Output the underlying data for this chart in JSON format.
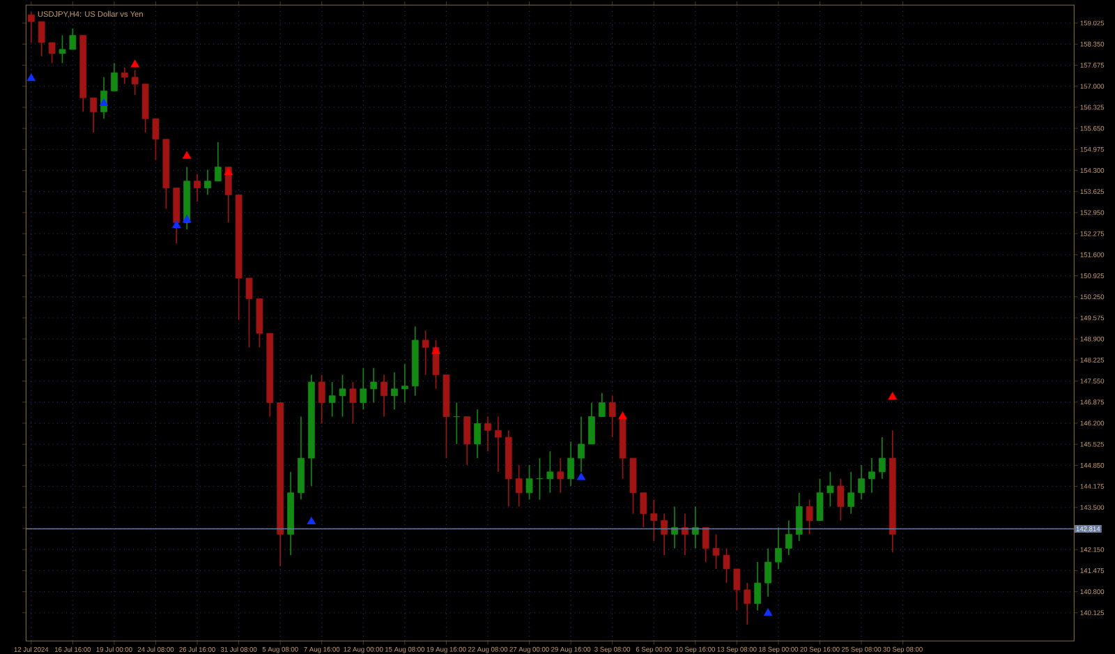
{
  "chart_data": {
    "type": "candlestick",
    "title": "USDJPY,H4: US Dollar vs Yen",
    "categories": [
      "12 Jul 2024",
      null,
      null,
      null,
      "16 Jul 16:00",
      null,
      null,
      null,
      "19 Jul 00:00",
      null,
      null,
      null,
      "24 Jul 08:00",
      null,
      null,
      null,
      "26 Jul 16:00",
      null,
      null,
      null,
      "31 Jul 08:00",
      null,
      null,
      null,
      "5 Aug 08:00",
      null,
      null,
      null,
      "7 Aug 16:00",
      null,
      null,
      null,
      "12 Aug 00:00",
      null,
      null,
      null,
      "15 Aug 08:00",
      null,
      null,
      null,
      "19 Aug 16:00",
      null,
      null,
      null,
      "22 Aug 08:00",
      null,
      null,
      null,
      "27 Aug 00:00",
      null,
      null,
      null,
      "29 Aug 16:00",
      null,
      null,
      null,
      "3 Sep 08:00",
      null,
      null,
      null,
      "6 Sep 00:00",
      null,
      null,
      null,
      "10 Sep 16:00",
      null,
      null,
      null,
      "13 Sep 08:00",
      null,
      null,
      null,
      "18 Sep 00:00",
      null,
      null,
      null,
      "20 Sep 16:00",
      null,
      null,
      null,
      "25 Sep 08:00",
      null,
      null,
      null,
      "30 Sep 08:00",
      null,
      null,
      null,
      null,
      null,
      null,
      null,
      null,
      null,
      null,
      null,
      null,
      null,
      null,
      null,
      null
    ],
    "ohlc": [
      [
        159.29,
        159.38,
        158.4,
        159.07
      ],
      [
        159.07,
        159.07,
        157.96,
        158.4
      ],
      [
        158.4,
        158.4,
        157.74,
        158.05
      ],
      [
        158.05,
        158.63,
        157.74,
        158.18
      ],
      [
        158.18,
        158.85,
        158.18,
        158.63
      ],
      [
        158.63,
        158.63,
        156.18,
        156.63
      ],
      [
        156.63,
        156.63,
        155.52,
        156.18
      ],
      [
        156.18,
        157.29,
        155.96,
        156.85
      ],
      [
        156.85,
        157.74,
        156.85,
        157.43
      ],
      [
        157.43,
        157.6,
        157.07,
        157.29
      ],
      [
        157.29,
        157.52,
        156.72,
        157.07
      ],
      [
        157.07,
        157.07,
        155.52,
        155.96
      ],
      [
        155.96,
        155.96,
        154.63,
        155.3
      ],
      [
        155.3,
        155.3,
        153.07,
        153.74
      ],
      [
        153.74,
        153.74,
        151.96,
        152.63
      ],
      [
        152.63,
        154.41,
        152.41,
        153.96
      ],
      [
        153.96,
        154.19,
        153.3,
        153.74
      ],
      [
        153.74,
        154.32,
        153.52,
        153.96
      ],
      [
        153.96,
        155.21,
        153.96,
        154.41
      ],
      [
        154.41,
        154.41,
        152.63,
        153.52
      ],
      [
        153.52,
        153.52,
        149.52,
        150.85
      ],
      [
        150.85,
        150.85,
        148.63,
        150.19
      ],
      [
        150.19,
        150.19,
        148.63,
        149.08
      ],
      [
        149.08,
        149.08,
        146.41,
        146.86
      ],
      [
        146.86,
        146.86,
        141.62,
        142.64
      ],
      [
        142.64,
        144.64,
        141.97,
        143.97
      ],
      [
        143.97,
        146.41,
        143.75,
        145.08
      ],
      [
        145.08,
        147.75,
        144.19,
        147.52
      ],
      [
        147.52,
        147.75,
        146.19,
        146.86
      ],
      [
        146.86,
        147.52,
        146.41,
        147.08
      ],
      [
        147.08,
        147.75,
        146.41,
        147.3
      ],
      [
        147.3,
        147.52,
        146.19,
        146.86
      ],
      [
        146.86,
        147.97,
        146.64,
        147.3
      ],
      [
        147.3,
        147.97,
        146.86,
        147.52
      ],
      [
        147.52,
        147.75,
        146.41,
        147.08
      ],
      [
        147.08,
        147.83,
        146.64,
        147.3
      ],
      [
        147.3,
        148.1,
        146.86,
        147.39
      ],
      [
        147.39,
        149.3,
        147.08,
        148.86
      ],
      [
        148.86,
        149.17,
        147.75,
        148.63
      ],
      [
        148.63,
        148.86,
        147.3,
        147.75
      ],
      [
        147.75,
        147.75,
        145.08,
        146.41
      ],
      [
        146.41,
        146.86,
        145.53,
        146.41
      ],
      [
        146.41,
        146.41,
        144.86,
        145.53
      ],
      [
        145.53,
        146.64,
        145.08,
        146.19
      ],
      [
        146.19,
        146.41,
        145.3,
        145.97
      ],
      [
        145.97,
        146.41,
        144.64,
        145.75
      ],
      [
        145.75,
        145.97,
        143.53,
        144.42
      ],
      [
        144.42,
        144.86,
        143.53,
        143.97
      ],
      [
        143.97,
        144.86,
        143.75,
        144.42
      ],
      [
        144.42,
        145.08,
        143.75,
        144.42
      ],
      [
        144.42,
        145.3,
        143.97,
        144.64
      ],
      [
        144.64,
        145.08,
        143.97,
        144.42
      ],
      [
        144.42,
        145.61,
        144.19,
        145.08
      ],
      [
        145.08,
        146.41,
        144.64,
        145.53
      ],
      [
        145.53,
        146.86,
        145.53,
        146.41
      ],
      [
        146.41,
        147.17,
        146.41,
        146.86
      ],
      [
        146.86,
        147.08,
        145.75,
        146.41
      ],
      [
        146.41,
        146.41,
        144.42,
        145.08
      ],
      [
        145.08,
        145.08,
        143.3,
        143.97
      ],
      [
        143.97,
        143.97,
        142.86,
        143.3
      ],
      [
        143.3,
        143.75,
        142.42,
        143.08
      ],
      [
        143.08,
        143.3,
        141.97,
        142.64
      ],
      [
        142.64,
        143.53,
        142.19,
        142.86
      ],
      [
        142.86,
        143.3,
        141.97,
        142.64
      ],
      [
        142.64,
        143.53,
        142.19,
        142.86
      ],
      [
        142.86,
        142.86,
        141.75,
        142.19
      ],
      [
        142.19,
        142.64,
        141.53,
        141.97
      ],
      [
        141.97,
        142.19,
        141.08,
        141.53
      ],
      [
        141.53,
        141.53,
        140.2,
        140.86
      ],
      [
        140.86,
        141.08,
        139.75,
        140.42
      ],
      [
        140.42,
        141.75,
        140.2,
        141.08
      ],
      [
        141.08,
        142.19,
        140.64,
        141.75
      ],
      [
        141.75,
        142.86,
        141.53,
        142.19
      ],
      [
        142.19,
        143.08,
        141.97,
        142.64
      ],
      [
        142.64,
        143.97,
        142.42,
        143.53
      ],
      [
        143.53,
        143.75,
        142.64,
        143.08
      ],
      [
        143.08,
        144.42,
        143.08,
        143.97
      ],
      [
        143.97,
        144.64,
        143.53,
        144.19
      ],
      [
        144.19,
        144.42,
        143.08,
        143.53
      ],
      [
        143.53,
        144.64,
        143.3,
        143.97
      ],
      [
        143.97,
        144.86,
        143.75,
        144.42
      ],
      [
        144.42,
        145.08,
        143.97,
        144.64
      ],
      [
        144.64,
        145.75,
        144.42,
        145.08
      ],
      [
        145.08,
        145.97,
        142.06,
        142.64
      ],
      null,
      null,
      null,
      null,
      null,
      null,
      null,
      null,
      null,
      null,
      null,
      null,
      null,
      null,
      null,
      null,
      null
    ],
    "colors": [
      "#a11414",
      "#a11414",
      "#a11414",
      "#138a13",
      "#138a13",
      "#a11414",
      "#a11414",
      "#138a13",
      "#138a13",
      "#a11414",
      "#a11414",
      "#a11414",
      "#a11414",
      "#a11414",
      "#a11414",
      "#138a13",
      "#a11414",
      "#138a13",
      "#138a13",
      "#a11414",
      "#a11414",
      "#a11414",
      "#a11414",
      "#a11414",
      "#a11414",
      "#138a13",
      "#138a13",
      "#138a13",
      "#a11414",
      "#138a13",
      "#138a13",
      "#a11414",
      "#138a13",
      "#138a13",
      "#a11414",
      "#138a13",
      "#138a13",
      "#138a13",
      "#a11414",
      "#a11414",
      "#a11414",
      "#138a13",
      "#a11414",
      "#138a13",
      "#a11414",
      "#a11414",
      "#a11414",
      "#a11414",
      "#138a13",
      "#138a13",
      "#138a13",
      "#a11414",
      "#138a13",
      "#138a13",
      "#138a13",
      "#138a13",
      "#a11414",
      "#a11414",
      "#a11414",
      "#a11414",
      "#a11414",
      "#a11414",
      "#138a13",
      "#a11414",
      "#138a13",
      "#a11414",
      "#a11414",
      "#a11414",
      "#a11414",
      "#a11414",
      "#138a13",
      "#138a13",
      "#138a13",
      "#138a13",
      "#138a13",
      "#a11414",
      "#138a13",
      "#138a13",
      "#a11414",
      "#138a13",
      "#138a13",
      "#138a13",
      "#138a13",
      "#a11414",
      null,
      null,
      null,
      null,
      null,
      null,
      null,
      null,
      null,
      null,
      null,
      null,
      null,
      null,
      null,
      null,
      null
    ],
    "series": [
      {
        "type": "scatter",
        "color": "#ff0000",
        "marker": "triangle",
        "values": [
          null,
          null,
          null,
          null,
          null,
          null,
          null,
          null,
          null,
          null,
          157.69,
          null,
          null,
          null,
          null,
          154.76,
          null,
          null,
          null,
          154.23,
          null,
          null,
          null,
          null,
          null,
          null,
          null,
          null,
          null,
          null,
          null,
          null,
          null,
          null,
          null,
          null,
          null,
          null,
          null,
          148.5,
          null,
          null,
          null,
          null,
          null,
          null,
          null,
          null,
          null,
          null,
          null,
          null,
          null,
          null,
          null,
          null,
          null,
          146.41,
          null,
          null,
          null,
          null,
          null,
          null,
          null,
          null,
          null,
          null,
          null,
          null,
          null,
          null,
          null,
          null,
          null,
          null,
          null,
          null,
          null,
          null,
          null,
          null,
          null,
          147.04,
          null,
          null,
          null,
          null,
          null,
          null,
          null,
          null,
          null,
          null,
          null,
          null,
          null,
          null,
          null,
          null,
          null
        ]
      },
      {
        "type": "scatter",
        "color": "#1030ff",
        "marker": "triangle",
        "values": [
          157.25,
          null,
          null,
          null,
          null,
          null,
          null,
          156.45,
          null,
          null,
          null,
          null,
          null,
          null,
          152.54,
          152.72,
          null,
          null,
          null,
          null,
          null,
          null,
          null,
          null,
          null,
          null,
          null,
          143.04,
          null,
          null,
          null,
          null,
          null,
          null,
          null,
          null,
          null,
          null,
          null,
          null,
          null,
          null,
          null,
          null,
          null,
          null,
          null,
          null,
          null,
          null,
          null,
          null,
          null,
          144.46,
          null,
          null,
          null,
          null,
          null,
          null,
          null,
          null,
          null,
          null,
          null,
          null,
          null,
          null,
          null,
          null,
          null,
          140.11,
          null,
          null,
          null,
          null,
          null,
          null,
          null,
          null,
          null,
          null,
          null,
          null,
          null,
          null,
          null,
          null,
          null,
          null,
          null,
          null,
          null,
          null,
          null,
          null,
          null,
          null,
          null,
          null,
          null
        ]
      }
    ],
    "ylim": [
      139.22,
      159.6
    ],
    "yticks": [
      140.125,
      {
        "value": 140.8,
        "label": "140.800"
      },
      141.475,
      {
        "value": 142.15,
        "label": "142.150"
      },
      {
        "value": 142.825,
        "label": null
      },
      {
        "value": 143.5,
        "label": "143.500"
      },
      144.175,
      {
        "value": 144.85,
        "label": "144.850"
      },
      145.525,
      {
        "value": 146.2,
        "label": "146.200"
      },
      146.875,
      {
        "value": 147.55,
        "label": "147.550"
      },
      148.225,
      {
        "value": 148.9,
        "label": "148.900"
      },
      149.575,
      {
        "value": 150.25,
        "label": "150.250"
      },
      150.925,
      {
        "value": 151.6,
        "label": "151.600"
      },
      152.275,
      {
        "value": 152.95,
        "label": "152.950"
      },
      153.625,
      {
        "value": 154.3,
        "label": "154.300"
      },
      154.975,
      {
        "value": 155.65,
        "label": "155.650"
      },
      156.325,
      {
        "value": 157,
        "label": "157.000"
      },
      157.675,
      {
        "value": 158.35,
        "label": "158.350"
      },
      159.025
    ],
    "ref_lines": [
      {
        "axis": "y",
        "value": 142.814,
        "label": "142.814",
        "color": "#6a7a9a"
      }
    ],
    "grid": true
  }
}
